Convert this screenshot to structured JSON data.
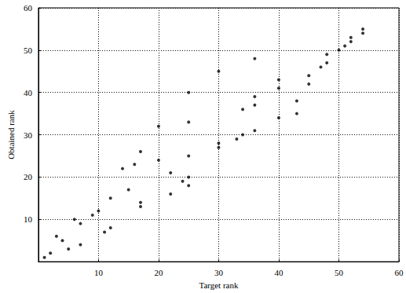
{
  "chart_data": {
    "type": "scatter",
    "x_label": "Target rank",
    "y_label": "Obtained rank",
    "x": [
      1,
      2,
      3,
      4,
      5,
      6,
      7,
      7,
      9,
      10,
      11,
      12,
      12,
      14,
      15,
      16,
      17,
      17,
      17,
      20,
      20,
      22,
      22,
      24,
      25,
      25,
      25,
      25,
      25,
      30,
      30,
      30,
      33,
      34,
      34,
      36,
      36,
      36,
      36,
      40,
      40,
      40,
      43,
      43,
      45,
      45,
      47,
      48,
      48,
      50,
      51,
      52,
      52,
      54,
      54
    ],
    "values": [
      1,
      2,
      6,
      5,
      3,
      10,
      4,
      9,
      11,
      12,
      7,
      8,
      15,
      22,
      17,
      23,
      13,
      14,
      26,
      24,
      32,
      16,
      21,
      19,
      20,
      18,
      25,
      33,
      40,
      27,
      28,
      45,
      29,
      30,
      36,
      31,
      37,
      39,
      48,
      34,
      41,
      43,
      38,
      35,
      42,
      44,
      46,
      47,
      49,
      50,
      51,
      52,
      53,
      54,
      55
    ],
    "color": "#000000",
    "marker": "circle",
    "xlim": [
      0,
      60
    ],
    "ylim": [
      0,
      60
    ],
    "xticks": [
      10,
      20,
      30,
      40,
      50,
      60
    ],
    "yticks": [
      10,
      20,
      30,
      40,
      50,
      60
    ],
    "grid": true
  }
}
